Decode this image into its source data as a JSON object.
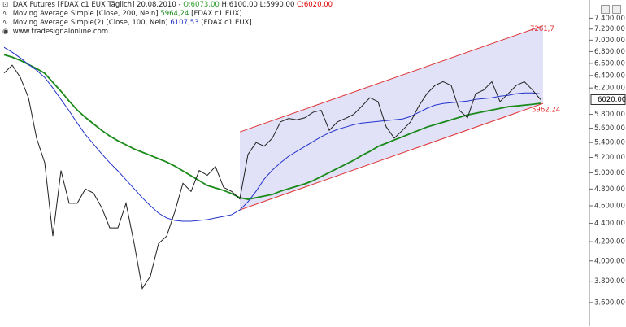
{
  "chart_data": {
    "type": "line",
    "log_scale": true,
    "grid": false,
    "watermark": "www.tradesignalonline.com",
    "ohlc_labels": [
      "O:6073,00",
      "H:6100,00",
      "L:5990,00",
      "C:6020,00"
    ],
    "last_price": 6020,
    "last_price_label": "6020,00",
    "channel": {
      "color": "#e03030",
      "fill": "#c8c8f0",
      "upper": [
        5547,
        7261.7
      ],
      "lower": [
        4552,
        5962.24
      ],
      "value_labels": [
        "7261,7",
        "5962,24"
      ]
    },
    "ylim": [
      3390,
      7750
    ],
    "yticks": [
      {
        "value": 3600,
        "label": "3.600,00"
      },
      {
        "value": 3800,
        "label": "3.800,00"
      },
      {
        "value": 4000,
        "label": "4.000,00"
      },
      {
        "value": 4200,
        "label": "4.200,00"
      },
      {
        "value": 4400,
        "label": "4.400,00"
      },
      {
        "value": 4600,
        "label": "4.600,00"
      },
      {
        "value": 4800,
        "label": "4.800,00"
      },
      {
        "value": 5000,
        "label": "5.000,00"
      },
      {
        "value": 5200,
        "label": "5.200,00"
      },
      {
        "value": 5400,
        "label": "5.400,00"
      },
      {
        "value": 5600,
        "label": "5.600,00"
      },
      {
        "value": 5800,
        "label": "5.800,00"
      },
      {
        "value": 6200,
        "label": "6.200,00"
      },
      {
        "value": 6400,
        "label": "6.400,00"
      },
      {
        "value": 6600,
        "label": "6.600,00"
      },
      {
        "value": 6800,
        "label": "6.800,00"
      },
      {
        "value": 7000,
        "label": "7.000,00"
      },
      {
        "value": 7200,
        "label": "7.200,00"
      },
      {
        "value": 7400,
        "label": "7.400,00"
      }
    ],
    "series": [
      {
        "name": "DAX Futures [FDAX c1 EUX  Täglich] 20.08.2010 -",
        "color": "#202020",
        "values": [
          6440,
          6570,
          6370,
          6050,
          5460,
          5130,
          4260,
          5030,
          4630,
          4630,
          4800,
          4750,
          4580,
          4350,
          4350,
          4630,
          4180,
          3730,
          3850,
          4180,
          4260,
          4530,
          4870,
          4770,
          5030,
          4970,
          5080,
          4820,
          4770,
          4680,
          5240,
          5400,
          5350,
          5460,
          5690,
          5740,
          5720,
          5750,
          5830,
          5860,
          5570,
          5690,
          5740,
          5800,
          5920,
          6050,
          5990,
          5620,
          5460,
          5570,
          5690,
          5920,
          6110,
          6240,
          6300,
          6240,
          5860,
          5750,
          6110,
          6170,
          6300,
          5990,
          6110,
          6240,
          6300,
          6170,
          6020
        ]
      },
      {
        "name": "Moving Average Simple [Close, 200, Nein]",
        "color": "#1a8a1a",
        "last_value": 5964.24,
        "last_value_label": "5964,24",
        "source": "[FDAX c1 EUX]",
        "values": [
          6747,
          6705,
          6650,
          6581,
          6514,
          6436,
          6290,
          6149,
          5999,
          5864,
          5756,
          5662,
          5570,
          5490,
          5424,
          5368,
          5313,
          5269,
          5226,
          5183,
          5140,
          5087,
          5025,
          4964,
          4903,
          4843,
          4813,
          4783,
          4744,
          4695,
          4676,
          4695,
          4715,
          4734,
          4773,
          4803,
          4833,
          4863,
          4903,
          4954,
          5005,
          5057,
          5109,
          5162,
          5226,
          5280,
          5346,
          5390,
          5435,
          5479,
          5525,
          5570,
          5616,
          5650,
          5685,
          5720,
          5756,
          5792,
          5816,
          5840,
          5864,
          5888,
          5913,
          5924,
          5937,
          5949,
          5964.24
        ]
      },
      {
        "name": "Moving Average Simple(2) [Close, 100, Nein]",
        "color": "#2233cc",
        "last_value": 6107.53,
        "last_value_label": "6107,53",
        "source": "[FDAX c1 EUX]",
        "values": [
          6873,
          6789,
          6692,
          6581,
          6488,
          6368,
          6200,
          6024,
          5852,
          5673,
          5512,
          5378,
          5248,
          5130,
          5025,
          4913,
          4803,
          4695,
          4600,
          4515,
          4460,
          4432,
          4423,
          4423,
          4432,
          4441,
          4460,
          4478,
          4497,
          4552,
          4647,
          4773,
          4923,
          5035,
          5130,
          5215,
          5280,
          5346,
          5413,
          5479,
          5536,
          5582,
          5616,
          5650,
          5673,
          5685,
          5697,
          5709,
          5720,
          5732,
          5768,
          5828,
          5888,
          5937,
          5961,
          5973,
          5986,
          5999,
          6024,
          6036,
          6048,
          6073,
          6086,
          6111,
          6123,
          6123,
          6107.53
        ]
      }
    ]
  }
}
